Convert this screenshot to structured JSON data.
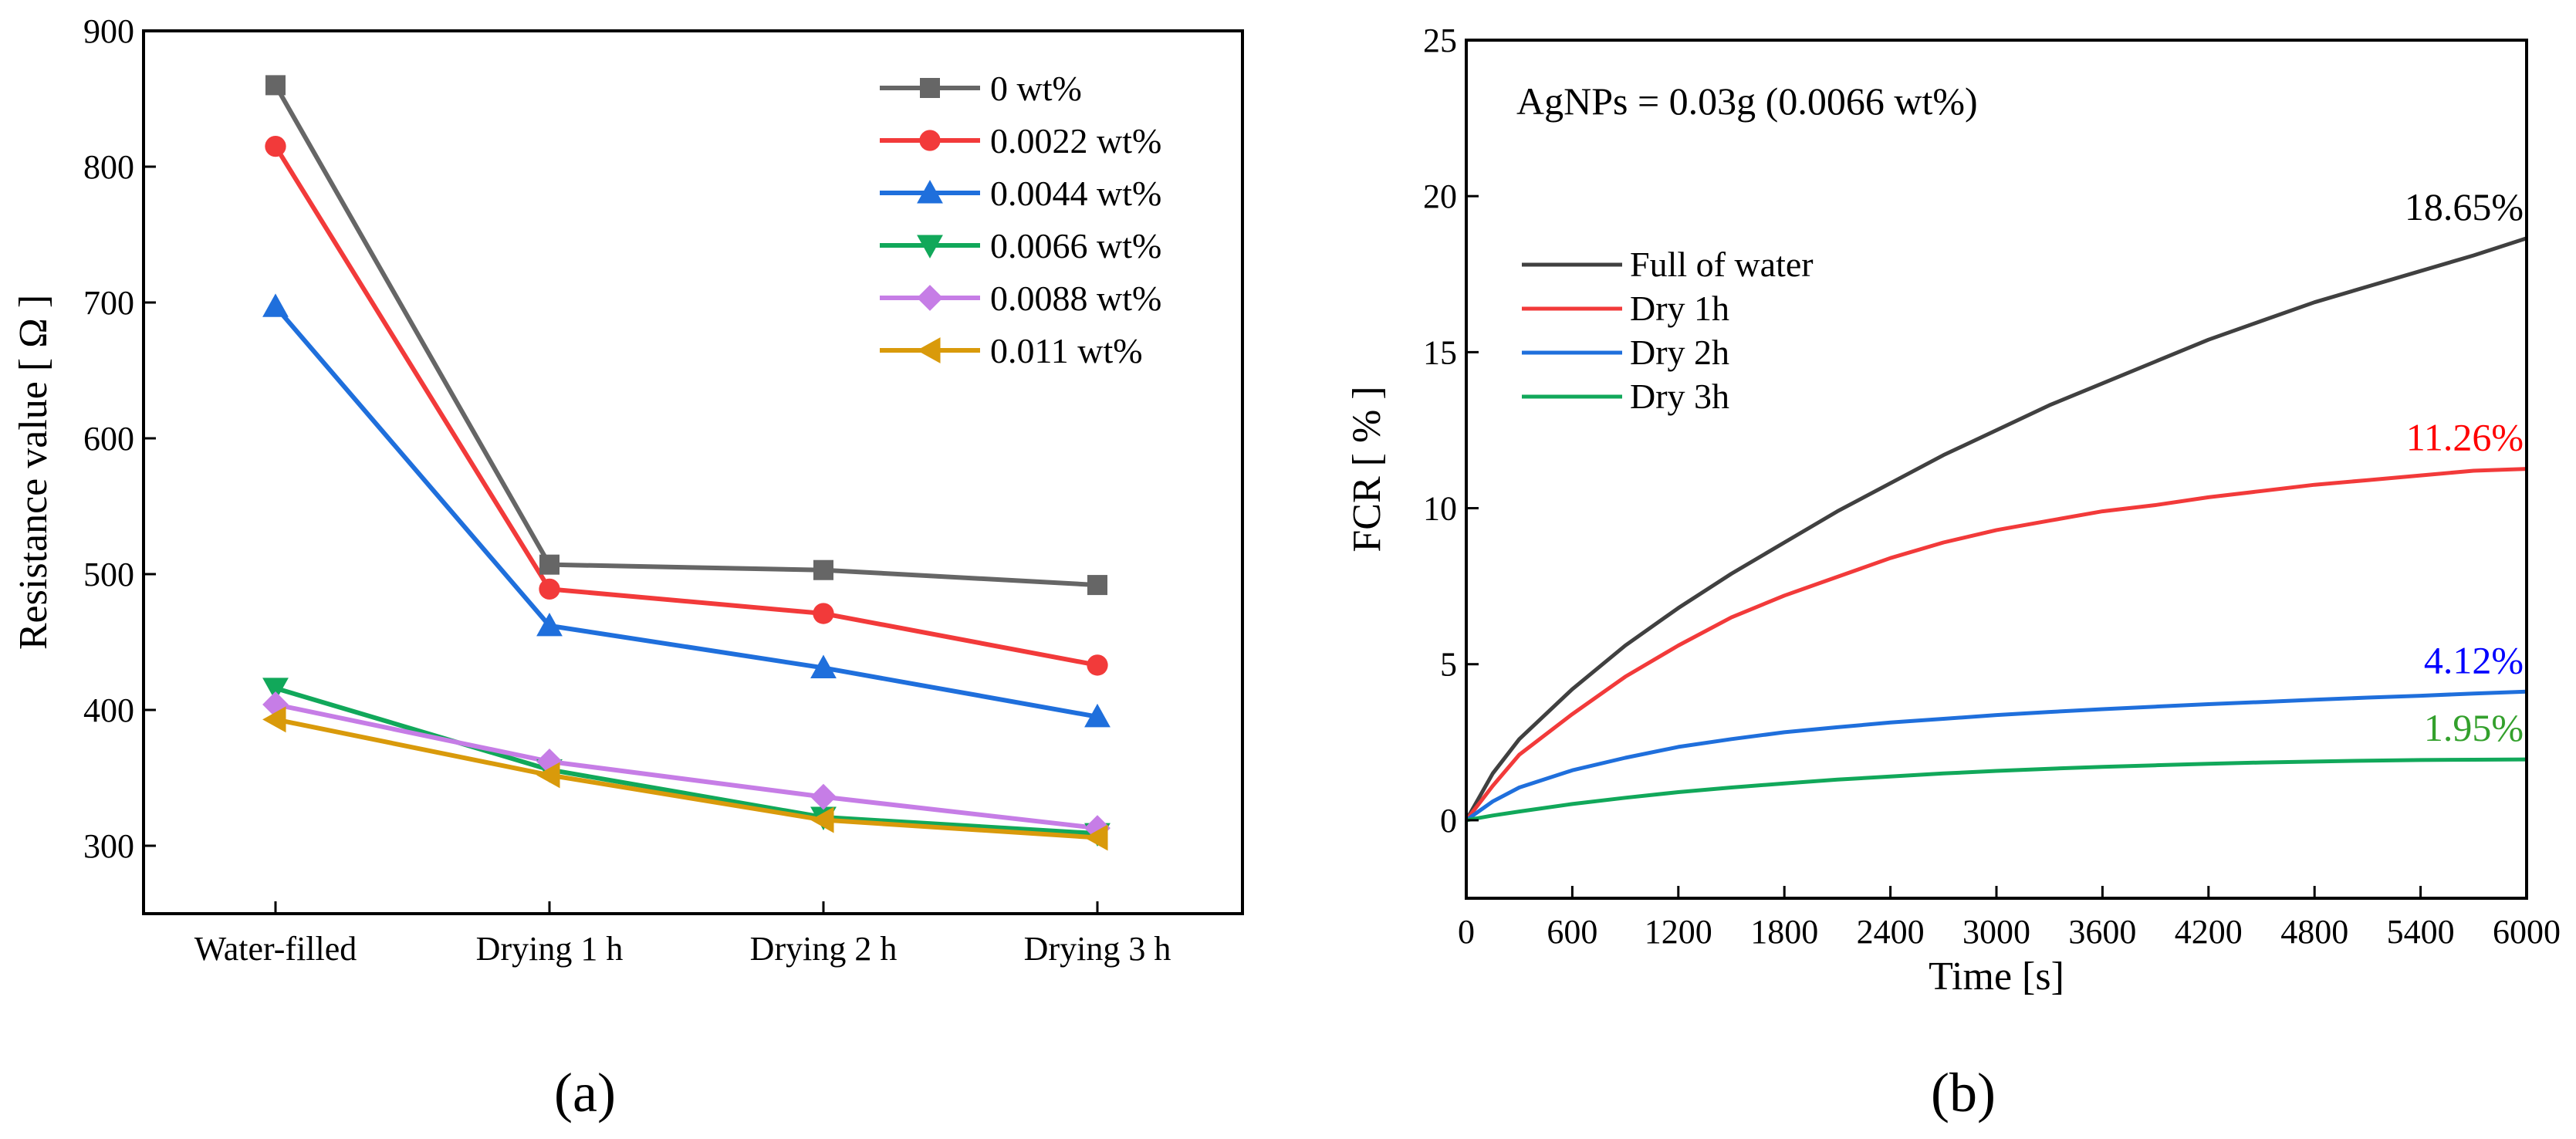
{
  "chart_data": [
    {
      "type": "line",
      "panel_label": "(a)",
      "title": "",
      "xlabel": "",
      "ylabel": "Resistance value [ Ω ]",
      "categories": [
        "Water-filled",
        "Drying 1 h",
        "Drying 2 h",
        "Drying 3 h"
      ],
      "ylim": [
        250,
        900
      ],
      "yticks": [
        "300",
        "400",
        "500",
        "600",
        "700",
        "800",
        "900"
      ],
      "legend_position": "top-right",
      "series": [
        {
          "name": "0 wt%",
          "color": "#666666",
          "marker": "square",
          "values": [
            860,
            507,
            503,
            492
          ]
        },
        {
          "name": "0.0022 wt%",
          "color": "#f23a3a",
          "marker": "circle",
          "values": [
            815,
            489,
            471,
            433
          ]
        },
        {
          "name": "0.0044 wt%",
          "color": "#1f6fdc",
          "marker": "triangle-up",
          "values": [
            697,
            462,
            431,
            395
          ]
        },
        {
          "name": "0.0066 wt%",
          "color": "#11a85a",
          "marker": "triangle-down",
          "values": [
            416,
            356,
            321,
            309
          ]
        },
        {
          "name": "0.0088 wt%",
          "color": "#c67de6",
          "marker": "diamond",
          "values": [
            404,
            362,
            336,
            313
          ]
        },
        {
          "name": "0.011 wt%",
          "color": "#d99a0b",
          "marker": "triangle-left",
          "values": [
            393,
            352,
            319,
            306
          ]
        }
      ]
    },
    {
      "type": "line",
      "panel_label": "(b)",
      "title": "",
      "annotation": "AgNPs = 0.03g (0.0066 wt%)",
      "xlabel": "Time [s]",
      "ylabel": "FCR [ % ]",
      "xlim": [
        0,
        6000
      ],
      "ylim": [
        -2.5,
        25
      ],
      "xticks": [
        "0",
        "600",
        "1200",
        "1800",
        "2400",
        "3000",
        "3600",
        "4200",
        "4800",
        "5400",
        "6000"
      ],
      "yticks": [
        "0",
        "5",
        "10",
        "15",
        "20",
        "25"
      ],
      "legend_position": "top-left",
      "x": [
        0,
        150,
        300,
        600,
        900,
        1200,
        1500,
        1800,
        2100,
        2400,
        2700,
        3000,
        3300,
        3600,
        3900,
        4200,
        4500,
        4800,
        5100,
        5400,
        5700,
        6000
      ],
      "series": [
        {
          "name": "Full of water",
          "color": "#404040",
          "end_label": "18.65%",
          "end_label_color": "#000000",
          "values": [
            0,
            1.5,
            2.6,
            4.2,
            5.6,
            6.8,
            7.9,
            8.9,
            9.9,
            10.8,
            11.7,
            12.5,
            13.3,
            14.0,
            14.7,
            15.4,
            16.0,
            16.6,
            17.1,
            17.6,
            18.1,
            18.65
          ]
        },
        {
          "name": "Dry 1h",
          "color": "#f23a3a",
          "end_label": "11.26%",
          "end_label_color": "#ff0000",
          "values": [
            0,
            1.1,
            2.1,
            3.4,
            4.6,
            5.6,
            6.5,
            7.2,
            7.8,
            8.4,
            8.9,
            9.3,
            9.6,
            9.9,
            10.1,
            10.35,
            10.55,
            10.75,
            10.9,
            11.05,
            11.2,
            11.26
          ]
        },
        {
          "name": "Dry 2h",
          "color": "#1f6fdc",
          "end_label": "4.12%",
          "end_label_color": "#0000ff",
          "values": [
            0,
            0.6,
            1.05,
            1.6,
            2.0,
            2.35,
            2.6,
            2.82,
            2.98,
            3.13,
            3.25,
            3.37,
            3.47,
            3.56,
            3.64,
            3.72,
            3.79,
            3.86,
            3.93,
            3.99,
            4.06,
            4.12
          ]
        },
        {
          "name": "Dry 3h",
          "color": "#11a85a",
          "end_label": "1.95%",
          "end_label_color": "#33a02c",
          "values": [
            0,
            0.15,
            0.28,
            0.52,
            0.72,
            0.9,
            1.05,
            1.18,
            1.3,
            1.4,
            1.5,
            1.58,
            1.65,
            1.71,
            1.76,
            1.81,
            1.85,
            1.88,
            1.91,
            1.93,
            1.94,
            1.95
          ]
        }
      ]
    }
  ]
}
